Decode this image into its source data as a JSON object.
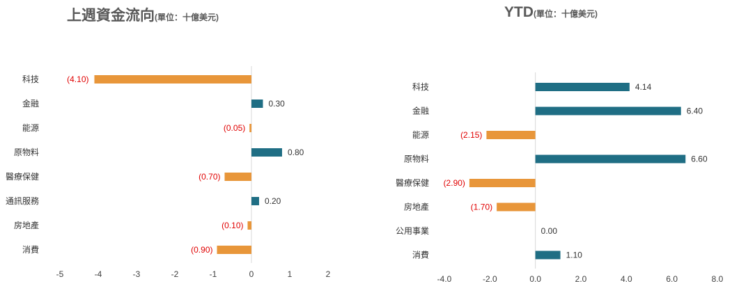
{
  "charts": {
    "weekly": {
      "title": "上週資金流向",
      "unit": "(單位：十億美元)"
    },
    "ytd": {
      "title": "YTD",
      "unit": "(單位：十億美元)"
    }
  },
  "colors": {
    "positive": "#1F6E84",
    "negative": "#E8963A",
    "negative_label": "#E00000",
    "positive_label": "#333333",
    "axis": "#D9D9D9"
  },
  "chart_data": [
    {
      "type": "bar",
      "orientation": "horizontal",
      "title": "上週資金流向(單位：十億美元)",
      "categories": [
        "科技",
        "金融",
        "能源",
        "原物料",
        "醫療保健",
        "通訊服務",
        "房地產",
        "消費"
      ],
      "values": [
        -4.1,
        0.3,
        -0.05,
        0.8,
        -0.7,
        0.2,
        -0.1,
        -0.9
      ],
      "labels": [
        "(4.10)",
        "0.30",
        "(0.05)",
        "0.80",
        "(0.70)",
        "0.20",
        "(0.10)",
        "(0.90)"
      ],
      "xlim": [
        -5,
        2
      ],
      "xticks": [
        -5,
        -4,
        -3,
        -2,
        -1,
        0,
        1,
        2
      ],
      "xtick_labels": [
        "-5",
        "-4",
        "-3",
        "-2",
        "-1",
        "0",
        "1",
        "2"
      ],
      "grid": false,
      "negative_labels_placement": "left-edge"
    },
    {
      "type": "bar",
      "orientation": "horizontal",
      "title": "YTD(單位：十億美元)",
      "categories": [
        "科技",
        "金融",
        "能源",
        "原物料",
        "醫療保健",
        "房地產",
        "公用事業",
        "消費"
      ],
      "values": [
        4.14,
        6.4,
        -2.15,
        6.6,
        -2.9,
        -1.7,
        0.0,
        1.1
      ],
      "labels": [
        "4.14",
        "6.40",
        "(2.15)",
        "6.60",
        "(2.90)",
        "(1.70)",
        "0.00",
        "1.10"
      ],
      "xlim": [
        -4,
        8
      ],
      "xticks": [
        -4,
        -2,
        0,
        2,
        4,
        6,
        8
      ],
      "xtick_labels": [
        "-4.0",
        "-2.0",
        "0.0",
        "2.0",
        "4.0",
        "6.0",
        "8.0"
      ],
      "grid": false,
      "negative_labels_placement": "bar-end"
    }
  ]
}
